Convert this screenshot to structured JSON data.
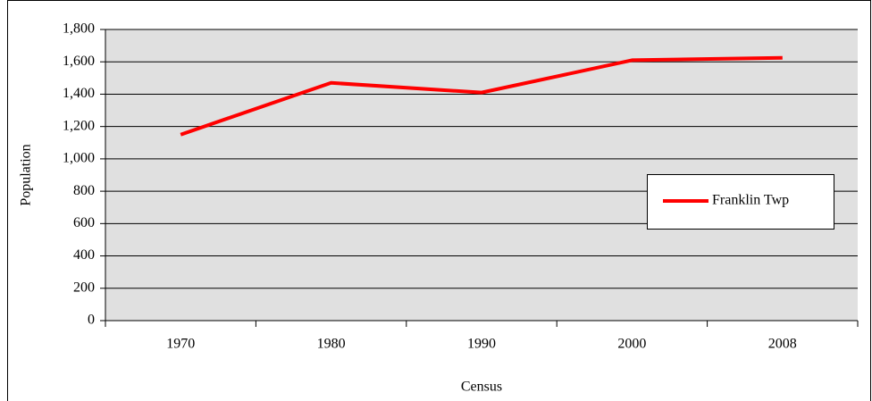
{
  "chart_data": {
    "type": "line",
    "x_label": "Census",
    "y_label": "Population",
    "categories": [
      "1970",
      "1980",
      "1990",
      "2000",
      "2008"
    ],
    "series": [
      {
        "name": "Franklin Twp",
        "color": "#ff0000",
        "values": [
          1150,
          1470,
          1410,
          1610,
          1625
        ]
      }
    ],
    "ylim": [
      0,
      1800
    ],
    "yticks": [
      0,
      200,
      400,
      600,
      800,
      {
        "value": 1000,
        "label": "1,000"
      },
      {
        "value": 1200,
        "label": "1,200"
      },
      {
        "value": 1400,
        "label": "1,400"
      },
      {
        "value": 1600,
        "label": "1,600"
      },
      {
        "value": 1800,
        "label": "1,800"
      }
    ],
    "grid": true,
    "legend": "right"
  }
}
